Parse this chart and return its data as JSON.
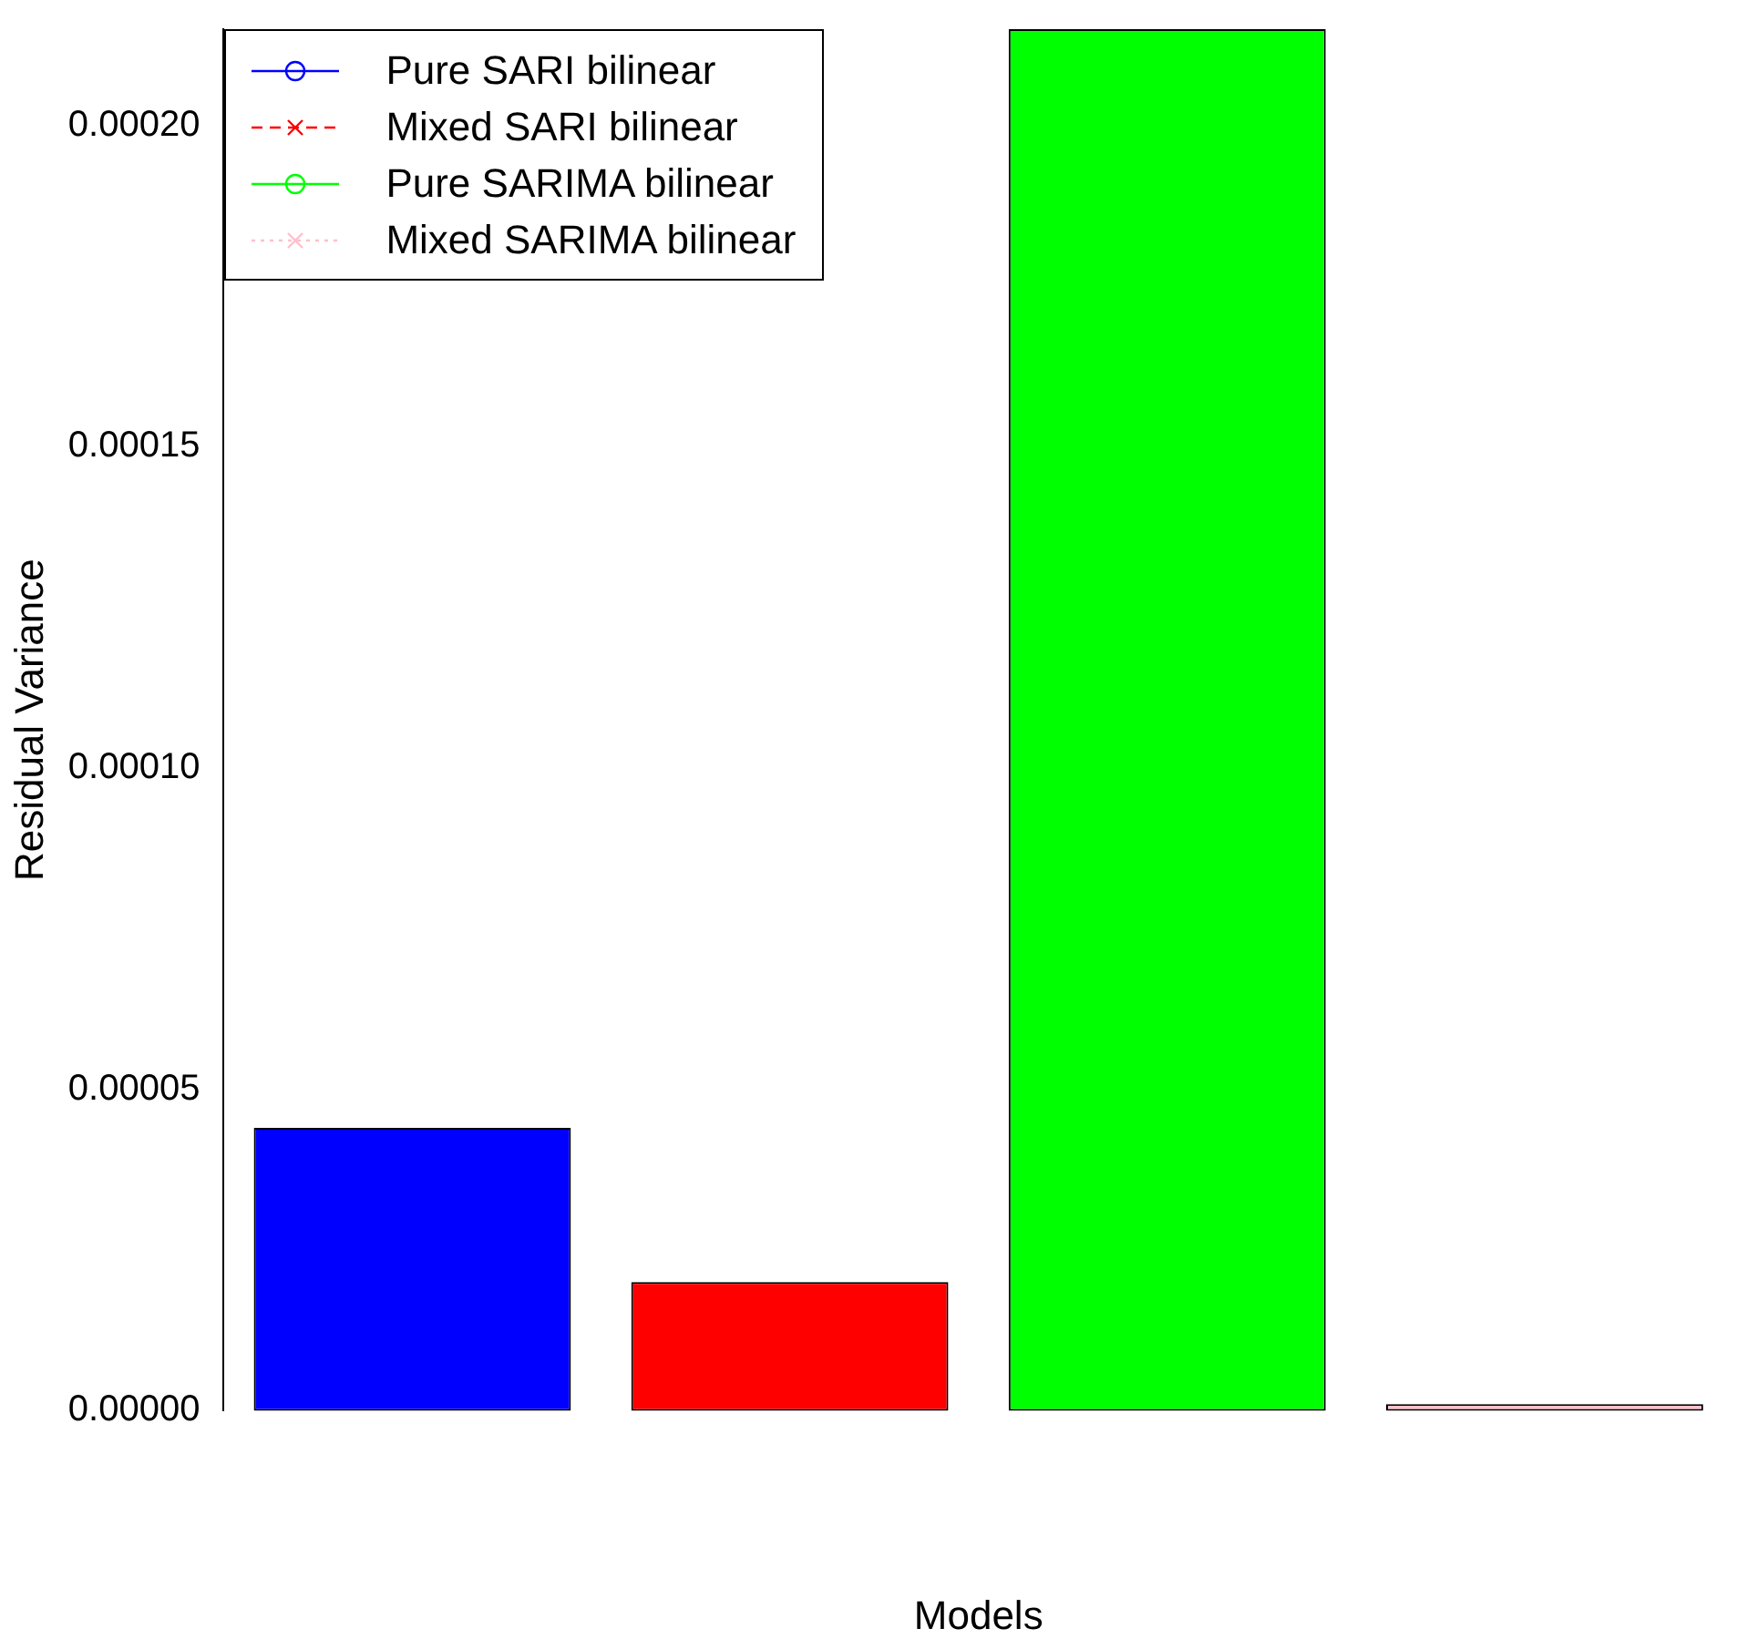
{
  "chart_data": {
    "type": "bar",
    "xlabel": "Models",
    "ylabel": "Residual Variance",
    "categories": [
      null
    ],
    "series": [
      {
        "name": "Pure SARI bilinear",
        "color": "#0000ff",
        "values": [
          4.4e-05
        ],
        "marker": "circle",
        "line_style": "solid"
      },
      {
        "name": "Mixed SARI bilinear",
        "color": "#ff0000",
        "values": [
          2e-05
        ],
        "marker": "cross",
        "line_style": "dashed"
      },
      {
        "name": "Pure SARIMA bilinear",
        "color": "#00ff00",
        "values": [
          0.000215
        ],
        "marker": "circle",
        "line_style": "solid"
      },
      {
        "name": "Mixed SARIMA bilinear",
        "color": "#ffc0cb",
        "values": [
          1e-06
        ],
        "marker": "cross",
        "line_style": "dotted"
      }
    ],
    "ylim": [
      0,
      0.000215
    ],
    "yticks": [
      {
        "value": 0,
        "label": "0.00000"
      },
      {
        "value": 5e-05,
        "label": "0.00005"
      },
      {
        "value": 0.0001,
        "label": "0.00010"
      },
      {
        "value": 0.00015,
        "label": "0.00015"
      },
      {
        "value": 0.0002,
        "label": "0.00020"
      }
    ],
    "grid": false,
    "legend": "top left"
  }
}
